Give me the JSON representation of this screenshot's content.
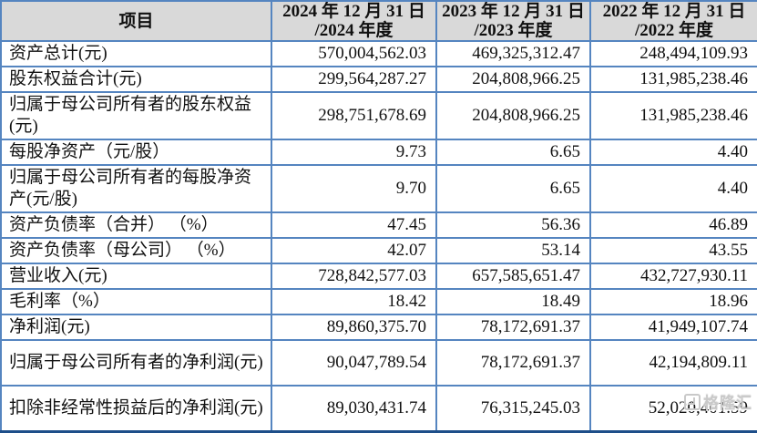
{
  "theme": {
    "grid_border": "#5585c0",
    "outer_bottom_border": "#1d4e89",
    "header_bg": "#d9d9d9",
    "text_color": "#111111",
    "watermark_color": "#c9c9c9"
  },
  "watermark": {
    "label": "格隆汇",
    "icon": "gelonghui-logo"
  },
  "table": {
    "columns": [
      {
        "label": "项目"
      },
      {
        "label": "2024 年 12 月 31 日\n/2024 年度"
      },
      {
        "label": "2023 年 12 月 31 日\n/2023 年度"
      },
      {
        "label": "2022 年 12 月 31 日\n/2022 年度"
      }
    ],
    "rows": [
      {
        "label": "资产总计(元)",
        "values": [
          "570,004,562.03",
          "469,325,312.47",
          "248,494,109.93"
        ],
        "tall": false
      },
      {
        "label": "股东权益合计(元)",
        "values": [
          "299,564,287.27",
          "204,808,966.25",
          "131,985,238.46"
        ],
        "tall": false
      },
      {
        "label": "归属于母公司所有者的股东权益(元)",
        "values": [
          "298,751,678.69",
          "204,808,966.25",
          "131,985,238.46"
        ],
        "tall": true
      },
      {
        "label": "每股净资产（元/股）",
        "values": [
          "9.73",
          "6.65",
          "4.40"
        ],
        "tall": false
      },
      {
        "label": "归属于母公司所有者的每股净资产(元/股)",
        "values": [
          "9.70",
          "6.65",
          "4.40"
        ],
        "tall": true
      },
      {
        "label": "资产负债率（合并） （%）",
        "values": [
          "47.45",
          "56.36",
          "46.89"
        ],
        "tall": false
      },
      {
        "label": "资产负债率（母公司） （%）",
        "values": [
          "42.07",
          "53.14",
          "43.55"
        ],
        "tall": false
      },
      {
        "label": "营业收入(元)",
        "values": [
          "728,842,577.03",
          "657,585,651.47",
          "432,727,930.11"
        ],
        "tall": false
      },
      {
        "label": "毛利率（%）",
        "values": [
          "18.42",
          "18.49",
          "18.96"
        ],
        "tall": false
      },
      {
        "label": "净利润(元)",
        "values": [
          "89,860,375.70",
          "78,172,691.37",
          "41,949,107.74"
        ],
        "tall": false
      },
      {
        "label": "归属于母公司所有者的净利润(元)",
        "values": [
          "90,047,789.54",
          "78,172,691.37",
          "42,194,809.11"
        ],
        "tall": true
      },
      {
        "label": "扣除非经常性损益后的净利润(元)",
        "values": [
          "89,030,431.74",
          "76,315,245.03",
          "52,020,401.59"
        ],
        "tall": true
      }
    ]
  }
}
